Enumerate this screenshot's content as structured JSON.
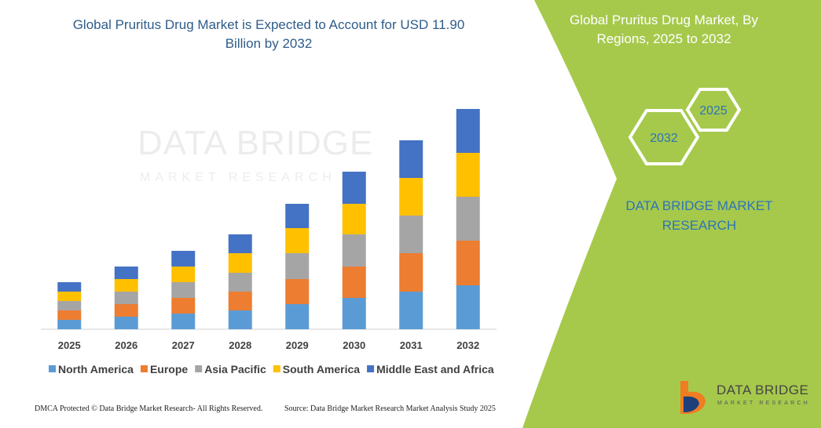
{
  "chart_data": {
    "type": "bar",
    "stacked": true,
    "title": "Global Pruritus Drug Market is Expected to Account for USD 11.90 Billion by 2032",
    "categories": [
      "2025",
      "2026",
      "2027",
      "2028",
      "2029",
      "2030",
      "2031",
      "2032"
    ],
    "series": [
      {
        "name": "North America",
        "color": "#5b9bd5",
        "values": [
          12,
          16,
          20,
          24,
          32,
          40,
          48,
          56
        ]
      },
      {
        "name": "Europe",
        "color": "#ed7d31",
        "values": [
          12,
          16,
          20,
          24,
          32,
          40,
          49,
          57
        ]
      },
      {
        "name": "Asia Pacific",
        "color": "#a5a5a5",
        "values": [
          12,
          16,
          20,
          24,
          33,
          41,
          48,
          56
        ]
      },
      {
        "name": "South America",
        "color": "#ffc000",
        "values": [
          12,
          16,
          20,
          25,
          32,
          39,
          48,
          56
        ]
      },
      {
        "name": "Middle East and Africa",
        "color": "#4472c4",
        "values": [
          12,
          16,
          20,
          24,
          31,
          41,
          48,
          56
        ]
      }
    ],
    "ylim": [
      0,
      290
    ],
    "grid": false,
    "legend": "bottom"
  },
  "panel": {
    "title": "Global Pruritus Drug Market, By Regions, 2025 to 2032",
    "hexagons": [
      "2032",
      "2025"
    ],
    "brand": "DATA BRIDGE MARKET RESEARCH"
  },
  "watermark": {
    "main": "DATA BRIDGE",
    "sub": "MARKET RESEARCH"
  },
  "logo": {
    "main": "DATA BRIDGE",
    "sub": "MARKET RESEARCH"
  },
  "footer": {
    "left": "DMCA Protected © Data Bridge Market Research-  All Rights Reserved.",
    "right": "Source: Data Bridge Market Research  Market Analysis Study 2025"
  }
}
